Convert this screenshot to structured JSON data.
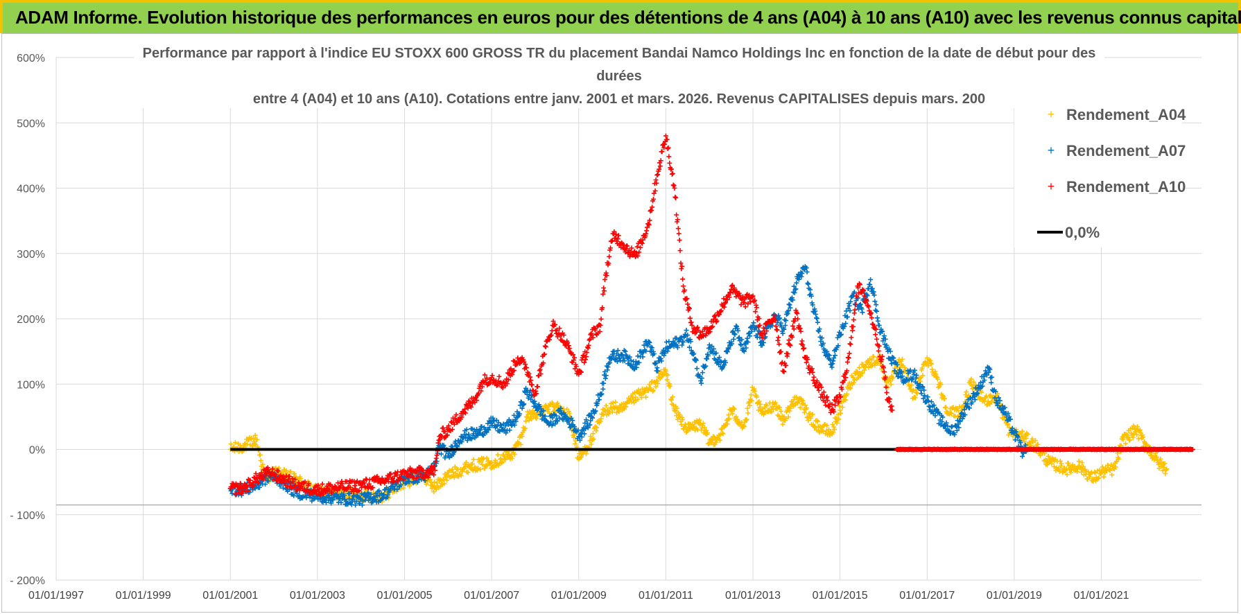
{
  "banner": {
    "title": "ADAM Informe. Evolution historique des performances en euros pour des détentions de 4 ans (A04) à 10 ans (A10) avec les revenus connus capitalisés",
    "background": "#92d050",
    "border_color": "#f2c200"
  },
  "chart_data": {
    "type": "scatter",
    "title_lines": [
      "Performance par rapport à l'indice EU STOXX 600 GROSS TR  du placement Bandai Namco Holdings Inc en fonction de la date de début pour des",
      "durées",
      "entre 4 (A04) et 10 ans (A10).  Cotations entre janv. 2001 et mars. 2026. Revenus CAPITALISES depuis mars. 200"
    ],
    "xlabel": "",
    "ylabel": "",
    "x_range": [
      1997.0,
      2023.3
    ],
    "y_range": [
      -200,
      600
    ],
    "y_ticks": [
      600,
      500,
      400,
      300,
      200,
      100,
      0,
      -100,
      -200
    ],
    "y_tick_labels": [
      "600%",
      "500%",
      "400%",
      "300%",
      "200%",
      "100%",
      "0%",
      "- 100%",
      "- 200%"
    ],
    "x_ticks": [
      1997,
      1999,
      2001,
      2003,
      2005,
      2007,
      2009,
      2011,
      2013,
      2015,
      2017,
      2019,
      2021
    ],
    "x_tick_labels": [
      "01/01/1997",
      "01/01/1999",
      "01/01/2001",
      "01/01/2003",
      "01/01/2005",
      "01/01/2007",
      "01/01/2009",
      "01/01/2011",
      "01/01/2013",
      "01/01/2015",
      "01/01/2017",
      "01/01/2019",
      "01/01/2021"
    ],
    "legend": {
      "placement": "top-right",
      "entries": [
        {
          "label": "Rendement_A04",
          "color": "#ffc000",
          "style": "cross"
        },
        {
          "label": "Rendement_A07",
          "color": "#0070c0",
          "style": "cross"
        },
        {
          "label": "Rendement_A10",
          "color": "#ff0000",
          "style": "cross"
        },
        {
          "label": "0,0%",
          "color": "#000000",
          "style": "line"
        }
      ]
    },
    "series": [
      {
        "name": "Rendement_A04",
        "color": "#ffc000",
        "points": [
          [
            2001.0,
            0
          ],
          [
            2001.3,
            5
          ],
          [
            2001.6,
            15
          ],
          [
            2001.8,
            -45
          ],
          [
            2002.0,
            -35
          ],
          [
            2002.5,
            -45
          ],
          [
            2003.0,
            -65
          ],
          [
            2003.5,
            -68
          ],
          [
            2004.0,
            -70
          ],
          [
            2004.5,
            -72
          ],
          [
            2005.0,
            -50
          ],
          [
            2005.4,
            -40
          ],
          [
            2005.7,
            -58
          ],
          [
            2006.0,
            -40
          ],
          [
            2006.5,
            -25
          ],
          [
            2007.0,
            -20
          ],
          [
            2007.2,
            -15
          ],
          [
            2007.5,
            -5
          ],
          [
            2007.7,
            20
          ],
          [
            2007.8,
            50
          ],
          [
            2008.0,
            55
          ],
          [
            2008.5,
            65
          ],
          [
            2008.8,
            50
          ],
          [
            2009.0,
            -15
          ],
          [
            2009.3,
            15
          ],
          [
            2009.6,
            60
          ],
          [
            2009.8,
            65
          ],
          [
            2010.0,
            60
          ],
          [
            2010.3,
            80
          ],
          [
            2010.6,
            90
          ],
          [
            2010.8,
            105
          ],
          [
            2011.0,
            120
          ],
          [
            2011.2,
            60
          ],
          [
            2011.5,
            30
          ],
          [
            2011.8,
            40
          ],
          [
            2012.0,
            10
          ],
          [
            2012.3,
            25
          ],
          [
            2012.5,
            60
          ],
          [
            2012.8,
            35
          ],
          [
            2013.0,
            90
          ],
          [
            2013.2,
            55
          ],
          [
            2013.5,
            70
          ],
          [
            2013.7,
            45
          ],
          [
            2014.0,
            80
          ],
          [
            2014.3,
            50
          ],
          [
            2014.5,
            35
          ],
          [
            2014.8,
            25
          ],
          [
            2015.0,
            60
          ],
          [
            2015.3,
            110
          ],
          [
            2015.6,
            130
          ],
          [
            2015.9,
            140
          ],
          [
            2016.1,
            95
          ],
          [
            2016.4,
            135
          ],
          [
            2016.7,
            80
          ],
          [
            2017.0,
            140
          ],
          [
            2017.2,
            115
          ],
          [
            2017.5,
            55
          ],
          [
            2017.8,
            60
          ],
          [
            2018.0,
            100
          ],
          [
            2018.3,
            75
          ],
          [
            2018.6,
            80
          ],
          [
            2018.9,
            25
          ],
          [
            2019.2,
            20
          ],
          [
            2019.5,
            5
          ],
          [
            2019.8,
            -20
          ],
          [
            2020.2,
            -30
          ],
          [
            2020.5,
            -25
          ],
          [
            2020.8,
            -45
          ],
          [
            2021.0,
            -35
          ],
          [
            2021.3,
            -30
          ],
          [
            2021.5,
            15
          ],
          [
            2021.8,
            30
          ],
          [
            2022.0,
            10
          ],
          [
            2022.3,
            -20
          ],
          [
            2022.5,
            -30
          ]
        ]
      },
      {
        "name": "Rendement_A07",
        "color": "#0070c0",
        "points": [
          [
            2001.0,
            -60
          ],
          [
            2001.3,
            -62
          ],
          [
            2001.6,
            -55
          ],
          [
            2001.9,
            -40
          ],
          [
            2002.2,
            -50
          ],
          [
            2002.5,
            -65
          ],
          [
            2003.0,
            -72
          ],
          [
            2003.5,
            -75
          ],
          [
            2004.0,
            -77
          ],
          [
            2004.5,
            -70
          ],
          [
            2005.0,
            -45
          ],
          [
            2005.5,
            -40
          ],
          [
            2005.7,
            -25
          ],
          [
            2005.8,
            5
          ],
          [
            2006.0,
            -10
          ],
          [
            2006.3,
            20
          ],
          [
            2006.7,
            25
          ],
          [
            2007.0,
            40
          ],
          [
            2007.3,
            30
          ],
          [
            2007.6,
            50
          ],
          [
            2007.8,
            90
          ],
          [
            2008.0,
            70
          ],
          [
            2008.3,
            40
          ],
          [
            2008.6,
            55
          ],
          [
            2008.9,
            35
          ],
          [
            2009.0,
            20
          ],
          [
            2009.3,
            50
          ],
          [
            2009.5,
            85
          ],
          [
            2009.7,
            140
          ],
          [
            2010.0,
            145
          ],
          [
            2010.3,
            130
          ],
          [
            2010.6,
            165
          ],
          [
            2010.8,
            125
          ],
          [
            2011.0,
            155
          ],
          [
            2011.3,
            165
          ],
          [
            2011.5,
            175
          ],
          [
            2011.8,
            105
          ],
          [
            2012.0,
            160
          ],
          [
            2012.3,
            125
          ],
          [
            2012.6,
            185
          ],
          [
            2012.8,
            150
          ],
          [
            2013.0,
            190
          ],
          [
            2013.2,
            165
          ],
          [
            2013.5,
            205
          ],
          [
            2013.7,
            185
          ],
          [
            2014.0,
            255
          ],
          [
            2014.2,
            280
          ],
          [
            2014.4,
            210
          ],
          [
            2014.6,
            160
          ],
          [
            2014.8,
            130
          ],
          [
            2015.0,
            175
          ],
          [
            2015.3,
            235
          ],
          [
            2015.5,
            215
          ],
          [
            2015.7,
            260
          ],
          [
            2015.9,
            190
          ],
          [
            2016.1,
            150
          ],
          [
            2016.4,
            110
          ],
          [
            2016.7,
            115
          ],
          [
            2017.0,
            75
          ],
          [
            2017.3,
            45
          ],
          [
            2017.6,
            25
          ],
          [
            2017.9,
            65
          ],
          [
            2018.2,
            95
          ],
          [
            2018.4,
            125
          ],
          [
            2018.6,
            75
          ],
          [
            2018.8,
            55
          ],
          [
            2019.0,
            25
          ],
          [
            2019.2,
            -5
          ],
          [
            2019.3,
            0
          ]
        ]
      },
      {
        "name": "Rendement_A10",
        "color": "#ff0000",
        "points": [
          [
            2001.0,
            -60
          ],
          [
            2001.3,
            -60
          ],
          [
            2001.6,
            -45
          ],
          [
            2001.9,
            -35
          ],
          [
            2002.2,
            -45
          ],
          [
            2002.5,
            -55
          ],
          [
            2003.0,
            -62
          ],
          [
            2003.5,
            -58
          ],
          [
            2004.0,
            -55
          ],
          [
            2004.5,
            -48
          ],
          [
            2005.0,
            -38
          ],
          [
            2005.5,
            -35
          ],
          [
            2005.7,
            -32
          ],
          [
            2005.8,
            20
          ],
          [
            2006.0,
            30
          ],
          [
            2006.3,
            55
          ],
          [
            2006.6,
            75
          ],
          [
            2006.8,
            105
          ],
          [
            2007.0,
            110
          ],
          [
            2007.3,
            100
          ],
          [
            2007.6,
            140
          ],
          [
            2007.8,
            125
          ],
          [
            2008.0,
            85
          ],
          [
            2008.2,
            145
          ],
          [
            2008.4,
            190
          ],
          [
            2008.6,
            175
          ],
          [
            2008.8,
            150
          ],
          [
            2009.0,
            115
          ],
          [
            2009.3,
            175
          ],
          [
            2009.5,
            190
          ],
          [
            2009.6,
            260
          ],
          [
            2009.8,
            330
          ],
          [
            2010.0,
            315
          ],
          [
            2010.3,
            295
          ],
          [
            2010.6,
            345
          ],
          [
            2010.8,
            420
          ],
          [
            2011.0,
            480
          ],
          [
            2011.2,
            400
          ],
          [
            2011.4,
            250
          ],
          [
            2011.6,
            190
          ],
          [
            2011.8,
            175
          ],
          [
            2012.0,
            185
          ],
          [
            2012.3,
            220
          ],
          [
            2012.5,
            245
          ],
          [
            2012.8,
            225
          ],
          [
            2013.0,
            235
          ],
          [
            2013.2,
            175
          ],
          [
            2013.5,
            205
          ],
          [
            2013.7,
            120
          ],
          [
            2014.0,
            210
          ],
          [
            2014.2,
            140
          ],
          [
            2014.5,
            95
          ],
          [
            2014.8,
            60
          ],
          [
            2015.0,
            80
          ],
          [
            2015.2,
            140
          ],
          [
            2015.4,
            250
          ],
          [
            2015.6,
            230
          ],
          [
            2015.8,
            185
          ],
          [
            2016.0,
            125
          ],
          [
            2016.1,
            75
          ],
          [
            2016.2,
            60
          ]
        ]
      },
      {
        "name": "Rendement_A10 zero band",
        "color": "#ff0000",
        "points": [
          [
            2016.3,
            0
          ],
          [
            2017.0,
            0
          ],
          [
            2018.0,
            0
          ],
          [
            2019.0,
            0
          ],
          [
            2020.0,
            0
          ],
          [
            2021.0,
            0
          ],
          [
            2022.0,
            0
          ],
          [
            2023.1,
            0
          ]
        ]
      }
    ],
    "reference_line": {
      "name": "0,0%",
      "color": "#000000",
      "y": 0,
      "x_range": [
        2001.0,
        2023.1
      ]
    }
  }
}
